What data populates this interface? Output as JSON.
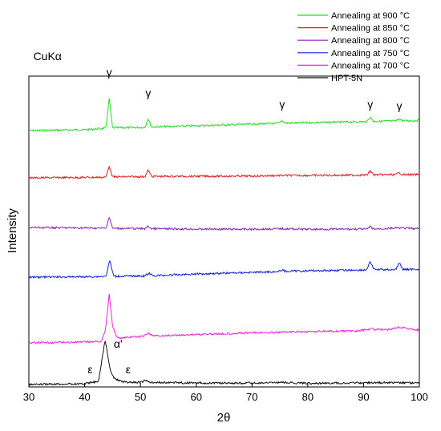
{
  "chart_data": {
    "type": "line",
    "xlabel": "2θ",
    "ylabel": "Intensity",
    "xlim": [
      30,
      100
    ],
    "x_ticks": [
      30,
      40,
      50,
      60,
      70,
      80,
      90,
      100
    ],
    "y_ticks": "none",
    "grid": false,
    "legend_position": "top-right, outside the plot area",
    "series": [
      {
        "name": "Annealing at 900 °C",
        "color": "#22dd22",
        "values": [
          [
            30,
            0.0
          ],
          [
            40,
            0.01
          ],
          [
            43.8,
            0.03
          ],
          [
            44.4,
            0.4
          ],
          [
            45.0,
            0.035
          ],
          [
            50.8,
            0.04
          ],
          [
            51.4,
            0.15
          ],
          [
            52.0,
            0.045
          ],
          [
            60,
            0.06
          ],
          [
            70,
            0.08
          ],
          [
            74.8,
            0.09
          ],
          [
            75.4,
            0.125
          ],
          [
            76.0,
            0.093
          ],
          [
            85,
            0.105
          ],
          [
            90.6,
            0.112
          ],
          [
            91.2,
            0.17
          ],
          [
            91.8,
            0.115
          ],
          [
            95.8,
            0.12
          ],
          [
            96.4,
            0.15
          ],
          [
            97.0,
            0.122
          ],
          [
            100,
            0.125
          ]
        ]
      },
      {
        "name": "Annealing at 850 °C",
        "color": "#dd2222",
        "values": [
          [
            30,
            0.0
          ],
          [
            40,
            0.005
          ],
          [
            43.8,
            0.008
          ],
          [
            44.4,
            0.15
          ],
          [
            45.0,
            0.012
          ],
          [
            50.8,
            0.015
          ],
          [
            51.4,
            0.095
          ],
          [
            52.0,
            0.018
          ],
          [
            60,
            0.02
          ],
          [
            70,
            0.022
          ],
          [
            75.4,
            0.03
          ],
          [
            80,
            0.03
          ],
          [
            90.6,
            0.035
          ],
          [
            91.2,
            0.085
          ],
          [
            91.8,
            0.038
          ],
          [
            95.8,
            0.04
          ],
          [
            96.4,
            0.065
          ],
          [
            97.0,
            0.04
          ],
          [
            100,
            0.04
          ]
        ]
      },
      {
        "name": "Annealing at 800 °C",
        "color": "#8822bb",
        "values": [
          [
            30,
            0.0
          ],
          [
            40,
            -0.005
          ],
          [
            43.8,
            -0.01
          ],
          [
            44.4,
            0.13
          ],
          [
            45.0,
            -0.01
          ],
          [
            50.8,
            -0.015
          ],
          [
            51.4,
            0.015
          ],
          [
            52.0,
            -0.015
          ],
          [
            60,
            -0.02
          ],
          [
            70,
            -0.022
          ],
          [
            75.4,
            -0.015
          ],
          [
            80,
            -0.022
          ],
          [
            90.6,
            -0.02
          ],
          [
            91.2,
            0.01
          ],
          [
            91.8,
            -0.02
          ],
          [
            96.4,
            -0.005
          ],
          [
            100,
            -0.015
          ]
        ]
      },
      {
        "name": "Annealing at 750 °C",
        "color": "#1122cc",
        "values": [
          [
            30,
            0.0
          ],
          [
            40,
            0.005
          ],
          [
            43.8,
            0.01
          ],
          [
            44.5,
            0.21
          ],
          [
            45.2,
            0.012
          ],
          [
            50.8,
            0.015
          ],
          [
            51.5,
            0.048
          ],
          [
            52.2,
            0.018
          ],
          [
            60,
            0.04
          ],
          [
            70,
            0.06
          ],
          [
            74.8,
            0.07
          ],
          [
            75.4,
            0.092
          ],
          [
            76.0,
            0.073
          ],
          [
            80,
            0.08
          ],
          [
            90.5,
            0.09
          ],
          [
            91.2,
            0.195
          ],
          [
            91.9,
            0.095
          ],
          [
            95.8,
            0.095
          ],
          [
            96.4,
            0.185
          ],
          [
            97.0,
            0.097
          ],
          [
            100,
            0.1
          ]
        ]
      },
      {
        "name": "Annealing at 700 °C",
        "color": "#ee22dd",
        "values": [
          [
            30,
            0.0
          ],
          [
            40,
            0.01
          ],
          [
            43.0,
            0.02
          ],
          [
            43.7,
            0.15
          ],
          [
            44.4,
            0.61
          ],
          [
            45.0,
            0.22
          ],
          [
            45.8,
            0.06
          ],
          [
            50.5,
            0.08
          ],
          [
            51.4,
            0.12
          ],
          [
            52.5,
            0.085
          ],
          [
            60,
            0.105
          ],
          [
            70,
            0.125
          ],
          [
            80,
            0.14
          ],
          [
            89,
            0.15
          ],
          [
            91.5,
            0.175
          ],
          [
            94,
            0.16
          ],
          [
            96.5,
            0.2
          ],
          [
            99,
            0.165
          ],
          [
            100,
            0.16
          ]
        ]
      },
      {
        "name": "HPT-5N",
        "color": "#111111",
        "values": [
          [
            30,
            0.0
          ],
          [
            40,
            0.01
          ],
          [
            42.5,
            0.04
          ],
          [
            43.3,
            0.4
          ],
          [
            43.7,
            0.56
          ],
          [
            44.2,
            0.33
          ],
          [
            44.7,
            0.15
          ],
          [
            45.3,
            0.08
          ],
          [
            46.2,
            0.045
          ],
          [
            48,
            0.025
          ],
          [
            50.3,
            0.03
          ],
          [
            50.8,
            0.055
          ],
          [
            51.5,
            0.028
          ],
          [
            60,
            0.02
          ],
          [
            70,
            0.018
          ],
          [
            75.5,
            0.025
          ],
          [
            80,
            0.015
          ],
          [
            91.2,
            0.022
          ],
          [
            96.5,
            0.025
          ],
          [
            100,
            0.02
          ]
        ]
      }
    ],
    "annotations": [
      {
        "text": "CuKα",
        "x": 30.8,
        "series": "Annealing at 900 °C",
        "offset": 0.88
      },
      {
        "text": "γ",
        "x": 44.4,
        "series": "Annealing at 900 °C",
        "offset": 0.68
      },
      {
        "text": "γ",
        "x": 51.4,
        "series": "Annealing at 900 °C",
        "offset": 0.42
      },
      {
        "text": "γ",
        "x": 75.4,
        "series": "Annealing at 900 °C",
        "offset": 0.28
      },
      {
        "text": "γ",
        "x": 91.2,
        "series": "Annealing at 900 °C",
        "offset": 0.28
      },
      {
        "text": "γ",
        "x": 96.4,
        "series": "Annealing at 900 °C",
        "offset": 0.26
      },
      {
        "text": "α'",
        "x": 46.0,
        "series": "HPT-5N",
        "offset": 0.46
      },
      {
        "text": "ε",
        "x": 41.0,
        "series": "HPT-5N",
        "offset": 0.14
      },
      {
        "text": "ε",
        "x": 47.8,
        "series": "HPT-5N",
        "offset": 0.14
      }
    ]
  }
}
